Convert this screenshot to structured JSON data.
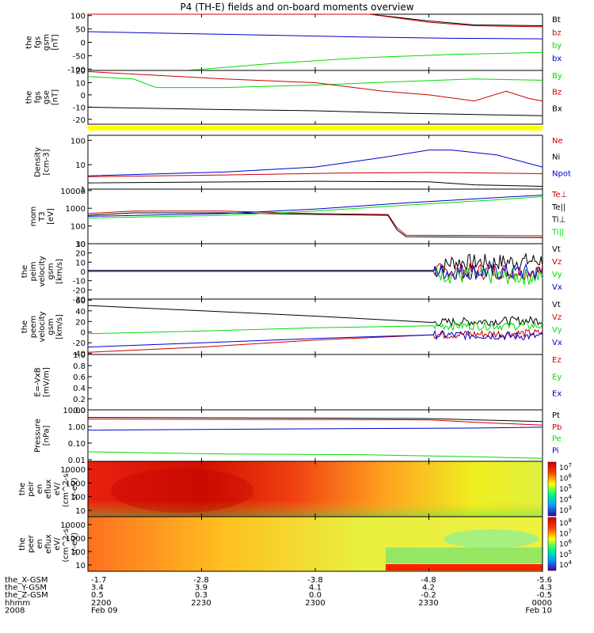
{
  "title": "P4 (TH-E) fields and on-board moments overview",
  "colors": {
    "black": "#000000",
    "red": "#cc0000",
    "green": "#00dd00",
    "blue": "#0000cc",
    "yellow": "#ffff00"
  },
  "ephemeris": {
    "rows": [
      {
        "label": "the_X-GSM",
        "values": [
          "-1.7",
          "-2.8",
          "-3.8",
          "-4.8",
          "-5.6"
        ]
      },
      {
        "label": "the_Y-GSM",
        "values": [
          "3.4",
          "3.9",
          "4.1",
          "4.2",
          "4.3"
        ]
      },
      {
        "label": "the_Z-GSM",
        "values": [
          "0.5",
          "0.3",
          "0.0",
          "-0.2",
          "-0.5"
        ]
      },
      {
        "label": "hhmm",
        "values": [
          "2200",
          "2230",
          "2300",
          "2330",
          "0000"
        ]
      },
      {
        "label": "2008",
        "values": [
          "Feb 09",
          "",
          "",
          "",
          "Feb 10"
        ]
      }
    ]
  },
  "chart_data": [
    {
      "type": "line",
      "ylabel": [
        "the",
        "fgs",
        "gsm",
        "[nT]"
      ],
      "yticks": [
        "100",
        "50",
        "0",
        "-50",
        "-100"
      ],
      "ylim": [
        -105,
        105
      ],
      "x": [
        "2200",
        "2230",
        "2300",
        "2330",
        "0000"
      ],
      "legend": [
        "Bt",
        "bz",
        "by",
        "bx"
      ],
      "series": [
        {
          "name": "Bt",
          "color": "black",
          "points": [
            [
              0,
              150
            ],
            [
              0.5,
              130
            ],
            [
              0.62,
              110
            ],
            [
              0.75,
              80
            ],
            [
              0.85,
              65
            ],
            [
              1,
              62
            ]
          ]
        },
        {
          "name": "bz",
          "color": "red",
          "points": [
            [
              0,
              140
            ],
            [
              0.5,
              125
            ],
            [
              0.62,
              105
            ],
            [
              0.75,
              75
            ],
            [
              0.85,
              62
            ],
            [
              1,
              58
            ]
          ]
        },
        {
          "name": "by",
          "color": "green",
          "points": [
            [
              0.22,
              -105
            ],
            [
              0.4,
              -80
            ],
            [
              0.6,
              -58
            ],
            [
              0.8,
              -45
            ],
            [
              1,
              -38
            ]
          ]
        },
        {
          "name": "bx",
          "color": "blue",
          "points": [
            [
              0,
              40
            ],
            [
              0.3,
              30
            ],
            [
              0.6,
              20
            ],
            [
              0.8,
              15
            ],
            [
              1,
              13
            ]
          ]
        }
      ]
    },
    {
      "type": "line",
      "ylabel": [
        "the",
        "fgs",
        "gse",
        "[nT]"
      ],
      "yticks": [
        "20",
        "10",
        "0",
        "-10",
        "-20"
      ],
      "ylim": [
        -24,
        20
      ],
      "x": [
        "2200",
        "2230",
        "2300",
        "2330",
        "0000"
      ],
      "legend": [
        "By",
        "Bz",
        "Bx"
      ],
      "series": [
        {
          "name": "By",
          "color": "green",
          "points": [
            [
              0,
              15
            ],
            [
              0.1,
              13
            ],
            [
              0.15,
              6
            ],
            [
              0.3,
              6
            ],
            [
              0.5,
              8
            ],
            [
              0.7,
              11
            ],
            [
              0.85,
              13
            ],
            [
              1,
              12
            ]
          ]
        },
        {
          "name": "Bz",
          "color": "red",
          "points": [
            [
              0,
              19
            ],
            [
              0.1,
              17
            ],
            [
              0.3,
              13
            ],
            [
              0.5,
              10
            ],
            [
              0.65,
              3
            ],
            [
              0.75,
              0
            ],
            [
              0.85,
              -5
            ],
            [
              0.92,
              3
            ],
            [
              0.97,
              -3
            ],
            [
              1,
              -5
            ]
          ]
        },
        {
          "name": "Bx",
          "color": "black",
          "points": [
            [
              0,
              -10
            ],
            [
              0.3,
              -12
            ],
            [
              0.5,
              -13
            ],
            [
              0.7,
              -15
            ],
            [
              1,
              -17
            ]
          ]
        }
      ]
    },
    {
      "type": "line",
      "log": true,
      "ylabel": [
        "Density",
        "[cm-3]"
      ],
      "yticks": [
        "100",
        "10",
        "1"
      ],
      "ylim": [
        1,
        160
      ],
      "x": [
        "2200",
        "2230",
        "2300",
        "2330",
        "0000"
      ],
      "legend": [
        "Ne",
        "Ni",
        "Npot"
      ],
      "series": [
        {
          "name": "Ne",
          "color": "red",
          "points": [
            [
              0,
              3.2
            ],
            [
              0.3,
              3.8
            ],
            [
              0.55,
              4.5
            ],
            [
              0.75,
              4.8
            ],
            [
              0.9,
              4.5
            ],
            [
              1,
              4.3
            ]
          ]
        },
        {
          "name": "Ni",
          "color": "black",
          "points": [
            [
              0,
              1.8
            ],
            [
              0.5,
              2.1
            ],
            [
              0.75,
              2.0
            ],
            [
              0.85,
              1.5
            ],
            [
              1,
              1.3
            ]
          ]
        },
        {
          "name": "Npot",
          "color": "blue",
          "points": [
            [
              0,
              3.5
            ],
            [
              0.3,
              5
            ],
            [
              0.5,
              8
            ],
            [
              0.65,
              20
            ],
            [
              0.75,
              40
            ],
            [
              0.8,
              40
            ],
            [
              0.9,
              25
            ],
            [
              1,
              8
            ]
          ]
        }
      ]
    },
    {
      "type": "line",
      "log": true,
      "ylabel": [
        "mom",
        "T3",
        "[eV]"
      ],
      "yticks": [
        "10000",
        "1000",
        "100",
        "10"
      ],
      "ylim": [
        10,
        12000
      ],
      "x": [
        "2200",
        "2230",
        "2300",
        "2330",
        "0000"
      ],
      "legend": [
        "Te⊥",
        "Te||",
        "Ti⊥",
        "Ti||"
      ],
      "series": [
        {
          "name": "Te⊥",
          "color": "red",
          "points": [
            [
              0,
              500
            ],
            [
              0.1,
              700
            ],
            [
              0.3,
              700
            ],
            [
              0.5,
              500
            ],
            [
              0.66,
              450
            ],
            [
              0.68,
              80
            ],
            [
              0.7,
              30
            ],
            [
              1,
              28
            ]
          ]
        },
        {
          "name": "Te||",
          "color": "black",
          "points": [
            [
              0,
              400
            ],
            [
              0.1,
              550
            ],
            [
              0.3,
              550
            ],
            [
              0.5,
              450
            ],
            [
              0.66,
              400
            ],
            [
              0.68,
              60
            ],
            [
              0.7,
              25
            ],
            [
              1,
              22
            ]
          ]
        },
        {
          "name": "Ti⊥",
          "color": "blue",
          "points": [
            [
              0,
              350
            ],
            [
              0.3,
              500
            ],
            [
              0.5,
              900
            ],
            [
              0.7,
              2000
            ],
            [
              0.9,
              4000
            ],
            [
              1,
              5500
            ]
          ]
        },
        {
          "name": "Ti||",
          "color": "green",
          "points": [
            [
              0,
              280
            ],
            [
              0.3,
              400
            ],
            [
              0.5,
              700
            ],
            [
              0.7,
              1500
            ],
            [
              0.9,
              3000
            ],
            [
              1,
              4500
            ]
          ]
        }
      ]
    },
    {
      "type": "line",
      "ylabel": [
        "the",
        "peim",
        "velocity",
        "gsm",
        "[km/s]"
      ],
      "yticks": [
        "30",
        "20",
        "10",
        "0",
        "-10",
        "-20",
        "-30"
      ],
      "ylim": [
        -30,
        30
      ],
      "x": [
        "2200",
        "2230",
        "2300",
        "2330",
        "0000"
      ],
      "legend": [
        "Vt",
        "Vz",
        "Vy",
        "Vx"
      ],
      "series": [
        {
          "name": "Vt",
          "color": "black",
          "points": [
            [
              0,
              1
            ],
            [
              0.76,
              1
            ],
            [
              0.8,
              10
            ],
            [
              0.9,
              10
            ],
            [
              1,
              12
            ]
          ]
        },
        {
          "name": "Vz",
          "color": "red",
          "points": [
            [
              0,
              0
            ],
            [
              0.76,
              0
            ],
            [
              1,
              0
            ]
          ]
        },
        {
          "name": "Vy",
          "color": "green",
          "points": [
            [
              0,
              0
            ],
            [
              0.76,
              0
            ],
            [
              0.8,
              -5
            ],
            [
              1,
              -6
            ]
          ]
        },
        {
          "name": "Vx",
          "color": "blue",
          "points": [
            [
              0,
              0
            ],
            [
              0.76,
              0
            ],
            [
              1,
              -1
            ]
          ]
        }
      ]
    },
    {
      "type": "line",
      "ylabel": [
        "the",
        "peem",
        "velocity",
        "gsm",
        "[km/s]"
      ],
      "yticks": [
        "60",
        "40",
        "20",
        "0",
        "-20",
        "-40"
      ],
      "ylim": [
        -42,
        62
      ],
      "x": [
        "2200",
        "2230",
        "2300",
        "2330",
        "0000"
      ],
      "legend": [
        "Vt",
        "Vz",
        "Vy",
        "Vx"
      ],
      "series": [
        {
          "name": "Vt",
          "color": "black",
          "points": [
            [
              0,
              50
            ],
            [
              0.25,
              40
            ],
            [
              0.5,
              30
            ],
            [
              0.76,
              18
            ],
            [
              0.85,
              20
            ],
            [
              1,
              22
            ]
          ]
        },
        {
          "name": "Vz",
          "color": "red",
          "points": [
            [
              0,
              -38
            ],
            [
              0.25,
              -28
            ],
            [
              0.5,
              -15
            ],
            [
              0.76,
              -5
            ],
            [
              1,
              -2
            ]
          ]
        },
        {
          "name": "Vy",
          "color": "green",
          "points": [
            [
              0,
              -3
            ],
            [
              0.25,
              2
            ],
            [
              0.5,
              8
            ],
            [
              0.76,
              12
            ],
            [
              1,
              12
            ]
          ]
        },
        {
          "name": "Vx",
          "color": "blue",
          "points": [
            [
              0,
              -28
            ],
            [
              0.25,
              -20
            ],
            [
              0.5,
              -12
            ],
            [
              0.76,
              -5
            ],
            [
              1,
              -8
            ]
          ]
        }
      ]
    },
    {
      "type": "line",
      "ylabel": [
        "E=-VxB",
        "[mV/m]"
      ],
      "yticks": [
        "1.0",
        "0.8",
        "0.6",
        "0.4",
        "0.2",
        "0.0"
      ],
      "ylim": [
        0,
        1
      ],
      "x": [
        "2200",
        "2230",
        "2300",
        "2330",
        "0000"
      ],
      "legend": [
        "Ez",
        "Ey",
        "Ex"
      ],
      "series": []
    },
    {
      "type": "line",
      "log": true,
      "ylabel": [
        "Pressure",
        "[nPa]"
      ],
      "yticks": [
        "10.00",
        "1.00",
        "0.10",
        "0.01"
      ],
      "ylim": [
        0.008,
        10
      ],
      "x": [
        "2200",
        "2230",
        "2300",
        "2330",
        "0000"
      ],
      "legend": [
        "Pt",
        "Pb",
        "Pe",
        "Pi"
      ],
      "series": [
        {
          "name": "Pt",
          "color": "black",
          "points": [
            [
              0,
              3.5
            ],
            [
              0.5,
              3.2
            ],
            [
              0.75,
              3.0
            ],
            [
              0.85,
              2.5
            ],
            [
              1,
              2.0
            ]
          ]
        },
        {
          "name": "Pb",
          "color": "red",
          "points": [
            [
              0,
              2.8
            ],
            [
              0.5,
              2.6
            ],
            [
              0.75,
              2.5
            ],
            [
              0.85,
              1.8
            ],
            [
              1,
              1.2
            ]
          ]
        },
        {
          "name": "Pe",
          "color": "green",
          "points": [
            [
              0,
              0.03
            ],
            [
              0.3,
              0.022
            ],
            [
              0.6,
              0.02
            ],
            [
              0.85,
              0.015
            ],
            [
              1,
              0.012
            ]
          ]
        },
        {
          "name": "Pi",
          "color": "blue",
          "points": [
            [
              0,
              0.6
            ],
            [
              0.4,
              0.7
            ],
            [
              0.6,
              0.75
            ],
            [
              0.85,
              0.8
            ],
            [
              1,
              0.9
            ]
          ]
        }
      ]
    },
    {
      "type": "heatmap",
      "ylabel": [
        "the",
        "peir",
        "en",
        "eflux",
        "eV/",
        "(cm^2-s-",
        "sr-eV)"
      ],
      "yticks": [
        "10000",
        "1000",
        "100",
        "10"
      ],
      "colorbar_ticks": [
        "10^7",
        "10^6",
        "10^5",
        "10^4",
        "10^3"
      ]
    },
    {
      "type": "heatmap",
      "ylabel": [
        "the",
        "peer",
        "en",
        "eflux",
        "eV/",
        "(cm^2-s-",
        "sr-eV)"
      ],
      "yticks": [
        "10000",
        "1000",
        "100",
        "10"
      ],
      "colorbar_ticks": [
        "10^8",
        "10^7",
        "10^6",
        "10^5",
        "10^4"
      ]
    }
  ]
}
